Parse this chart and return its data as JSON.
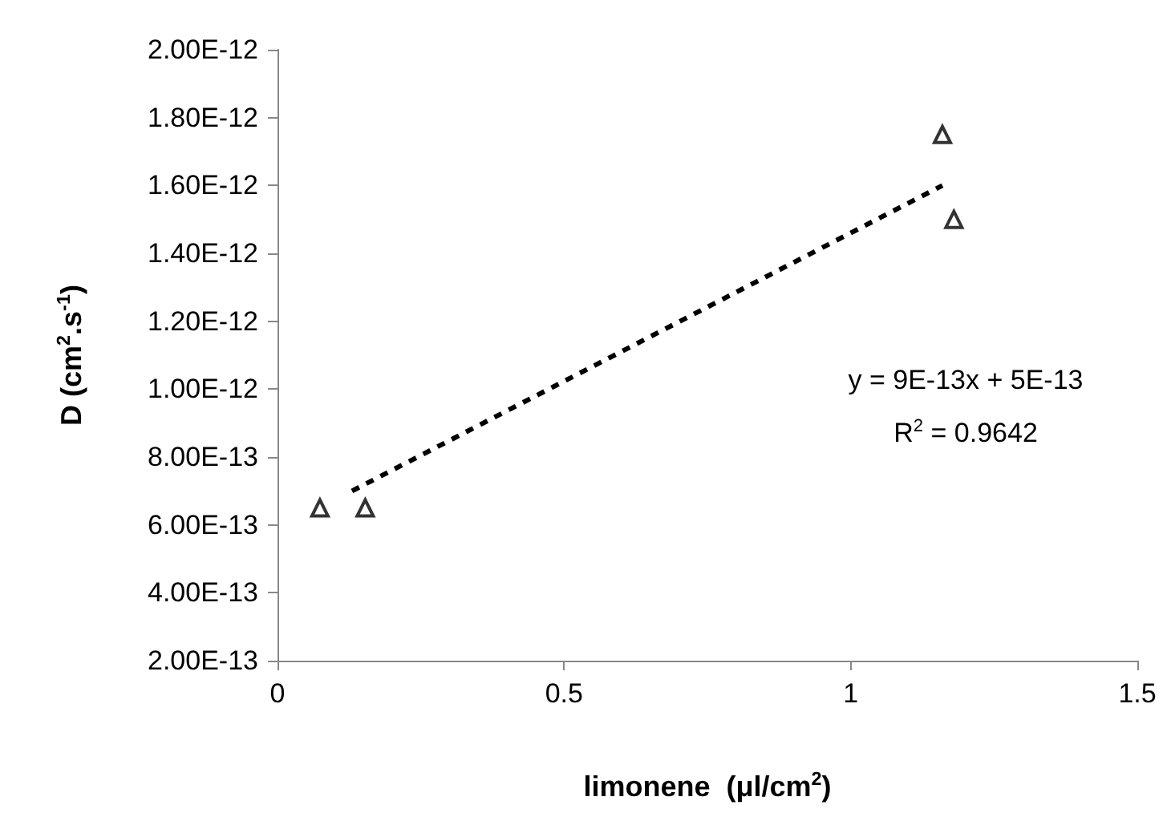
{
  "chart_data": {
    "type": "scatter",
    "xlabel": "limonene  (μl/cm$^{2}$)",
    "ylabel": "D (cm$^{2}$.s$^{-1}$)",
    "series": [
      {
        "color": "#000000",
        "marker": "triangle",
        "x": [
          0.074,
          0.153,
          1.16,
          1.18
        ],
        "values": [
          6.5e-13,
          6.5e-13,
          1.75e-12,
          1.5e-12
        ]
      },
      {
        "type": "line",
        "color": "#000000",
        "marker": "none",
        "line_style": "dashed",
        "x": [
          0.13,
          1.16
        ],
        "values": [
          7e-13,
          1.6e-12
        ]
      }
    ],
    "xlim": [
      0,
      1.5
    ],
    "xticks": [
      0,
      0.5,
      1,
      1.5
    ],
    "ylim": [
      2e-13,
      2e-12
    ],
    "yticks": [
      {
        "value": 2e-13,
        "label": "2.00E-13"
      },
      {
        "value": 4e-13,
        "label": "4.00E-13"
      },
      {
        "value": 6e-13,
        "label": "6.00E-13"
      },
      {
        "value": 8e-13,
        "label": "8.00E-13"
      },
      {
        "value": 1e-12,
        "label": "1.00E-12"
      },
      {
        "value": 1.2e-12,
        "label": "1.20E-12"
      },
      {
        "value": 1.4e-12,
        "label": "1.40E-12"
      },
      {
        "value": 1.6e-12,
        "label": "1.60E-12"
      },
      {
        "value": 1.8e-12,
        "label": "1.80E-12"
      },
      {
        "value": 2e-12,
        "label": "2.00E-12"
      }
    ],
    "annotations": [
      "y = 9E-13x + 5E-13",
      "R$^{2}$ = 0.9642"
    ],
    "grid": false
  }
}
